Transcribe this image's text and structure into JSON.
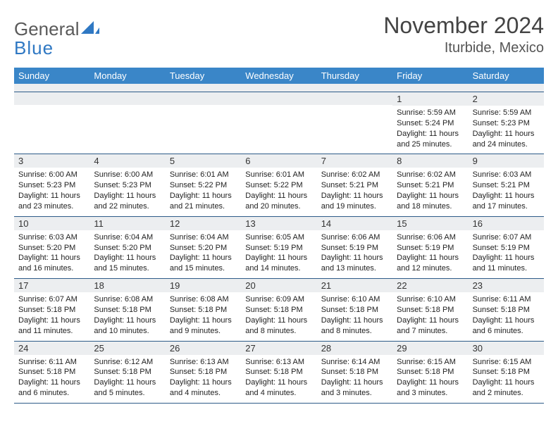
{
  "colors": {
    "header_bar": "#3a86c8",
    "daynum_bg": "#eceef0",
    "row_divider": "#2d5b88",
    "text": "#222222",
    "logo_gray": "#5a5a5a",
    "logo_blue": "#2f78c3"
  },
  "logo": {
    "line1": "General",
    "line2": "Blue"
  },
  "title": "November 2024",
  "location": "Iturbide, Mexico",
  "weekdays": [
    "Sunday",
    "Monday",
    "Tuesday",
    "Wednesday",
    "Thursday",
    "Friday",
    "Saturday"
  ],
  "labels": {
    "sunrise": "Sunrise: ",
    "sunset": "Sunset: ",
    "daylight": "Daylight: "
  },
  "weeks": [
    [
      {
        "blank": true
      },
      {
        "blank": true
      },
      {
        "blank": true
      },
      {
        "blank": true
      },
      {
        "blank": true
      },
      {
        "n": "1",
        "sunrise": "5:59 AM",
        "sunset": "5:24 PM",
        "daylight": "11 hours and 25 minutes."
      },
      {
        "n": "2",
        "sunrise": "5:59 AM",
        "sunset": "5:23 PM",
        "daylight": "11 hours and 24 minutes."
      }
    ],
    [
      {
        "n": "3",
        "sunrise": "6:00 AM",
        "sunset": "5:23 PM",
        "daylight": "11 hours and 23 minutes."
      },
      {
        "n": "4",
        "sunrise": "6:00 AM",
        "sunset": "5:23 PM",
        "daylight": "11 hours and 22 minutes."
      },
      {
        "n": "5",
        "sunrise": "6:01 AM",
        "sunset": "5:22 PM",
        "daylight": "11 hours and 21 minutes."
      },
      {
        "n": "6",
        "sunrise": "6:01 AM",
        "sunset": "5:22 PM",
        "daylight": "11 hours and 20 minutes."
      },
      {
        "n": "7",
        "sunrise": "6:02 AM",
        "sunset": "5:21 PM",
        "daylight": "11 hours and 19 minutes."
      },
      {
        "n": "8",
        "sunrise": "6:02 AM",
        "sunset": "5:21 PM",
        "daylight": "11 hours and 18 minutes."
      },
      {
        "n": "9",
        "sunrise": "6:03 AM",
        "sunset": "5:21 PM",
        "daylight": "11 hours and 17 minutes."
      }
    ],
    [
      {
        "n": "10",
        "sunrise": "6:03 AM",
        "sunset": "5:20 PM",
        "daylight": "11 hours and 16 minutes."
      },
      {
        "n": "11",
        "sunrise": "6:04 AM",
        "sunset": "5:20 PM",
        "daylight": "11 hours and 15 minutes."
      },
      {
        "n": "12",
        "sunrise": "6:04 AM",
        "sunset": "5:20 PM",
        "daylight": "11 hours and 15 minutes."
      },
      {
        "n": "13",
        "sunrise": "6:05 AM",
        "sunset": "5:19 PM",
        "daylight": "11 hours and 14 minutes."
      },
      {
        "n": "14",
        "sunrise": "6:06 AM",
        "sunset": "5:19 PM",
        "daylight": "11 hours and 13 minutes."
      },
      {
        "n": "15",
        "sunrise": "6:06 AM",
        "sunset": "5:19 PM",
        "daylight": "11 hours and 12 minutes."
      },
      {
        "n": "16",
        "sunrise": "6:07 AM",
        "sunset": "5:19 PM",
        "daylight": "11 hours and 11 minutes."
      }
    ],
    [
      {
        "n": "17",
        "sunrise": "6:07 AM",
        "sunset": "5:18 PM",
        "daylight": "11 hours and 11 minutes."
      },
      {
        "n": "18",
        "sunrise": "6:08 AM",
        "sunset": "5:18 PM",
        "daylight": "11 hours and 10 minutes."
      },
      {
        "n": "19",
        "sunrise": "6:08 AM",
        "sunset": "5:18 PM",
        "daylight": "11 hours and 9 minutes."
      },
      {
        "n": "20",
        "sunrise": "6:09 AM",
        "sunset": "5:18 PM",
        "daylight": "11 hours and 8 minutes."
      },
      {
        "n": "21",
        "sunrise": "6:10 AM",
        "sunset": "5:18 PM",
        "daylight": "11 hours and 8 minutes."
      },
      {
        "n": "22",
        "sunrise": "6:10 AM",
        "sunset": "5:18 PM",
        "daylight": "11 hours and 7 minutes."
      },
      {
        "n": "23",
        "sunrise": "6:11 AM",
        "sunset": "5:18 PM",
        "daylight": "11 hours and 6 minutes."
      }
    ],
    [
      {
        "n": "24",
        "sunrise": "6:11 AM",
        "sunset": "5:18 PM",
        "daylight": "11 hours and 6 minutes."
      },
      {
        "n": "25",
        "sunrise": "6:12 AM",
        "sunset": "5:18 PM",
        "daylight": "11 hours and 5 minutes."
      },
      {
        "n": "26",
        "sunrise": "6:13 AM",
        "sunset": "5:18 PM",
        "daylight": "11 hours and 4 minutes."
      },
      {
        "n": "27",
        "sunrise": "6:13 AM",
        "sunset": "5:18 PM",
        "daylight": "11 hours and 4 minutes."
      },
      {
        "n": "28",
        "sunrise": "6:14 AM",
        "sunset": "5:18 PM",
        "daylight": "11 hours and 3 minutes."
      },
      {
        "n": "29",
        "sunrise": "6:15 AM",
        "sunset": "5:18 PM",
        "daylight": "11 hours and 3 minutes."
      },
      {
        "n": "30",
        "sunrise": "6:15 AM",
        "sunset": "5:18 PM",
        "daylight": "11 hours and 2 minutes."
      }
    ]
  ]
}
